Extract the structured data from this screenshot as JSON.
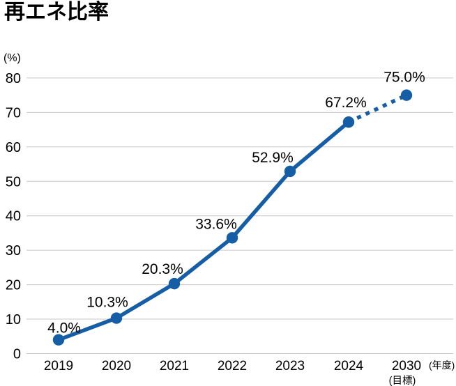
{
  "chart_data": {
    "type": "line",
    "title": "再エネ比率",
    "categories": [
      "2019",
      "2020",
      "2021",
      "2022",
      "2023",
      "2024",
      "2030"
    ],
    "values": [
      4.0,
      10.3,
      20.3,
      33.6,
      52.9,
      67.2,
      75.0
    ],
    "point_labels": [
      "4.0%",
      "10.3%",
      "20.3%",
      "33.6%",
      "52.9%",
      "67.2%",
      "75.0%"
    ],
    "y_unit": "(%)",
    "x_unit": "(年度)",
    "last_category_note": "(目標)",
    "yticks": [
      0,
      10,
      20,
      30,
      40,
      50,
      60,
      70,
      80
    ],
    "ylim": [
      0,
      80
    ],
    "grid": "horizontal-only",
    "legend": "none",
    "line_color": "#155da4",
    "grid_color": "#c9c9c9",
    "dashed_from_category": "2024",
    "dashed_to_category": "2030"
  }
}
